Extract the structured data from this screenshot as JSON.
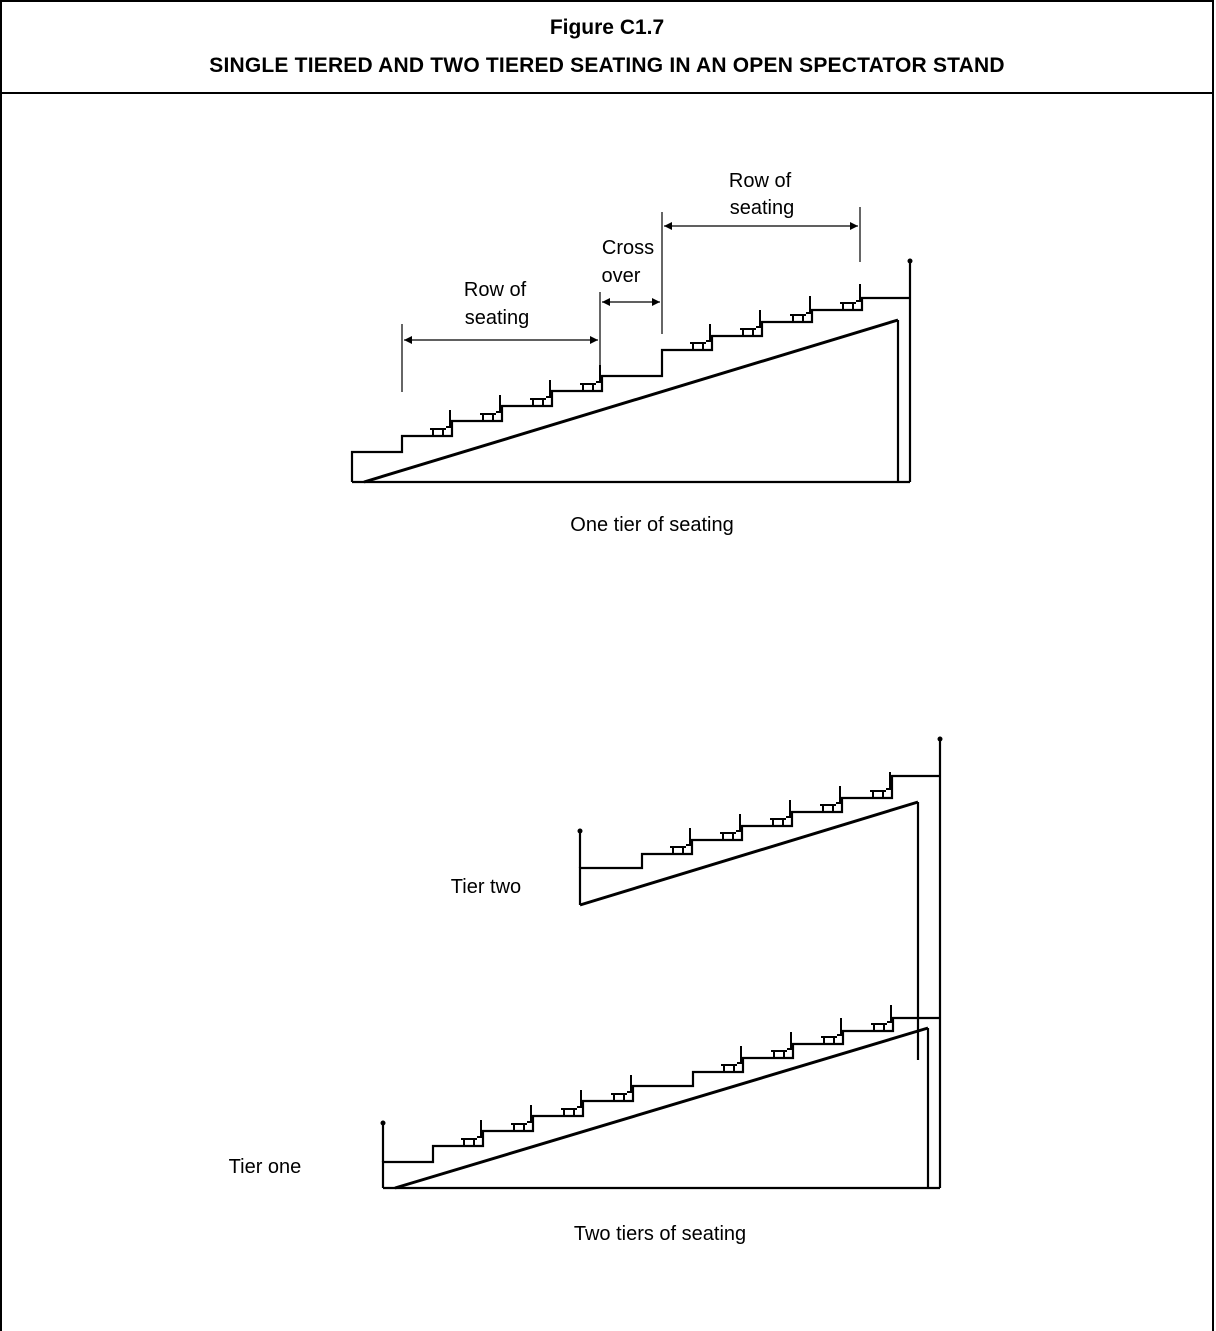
{
  "figure": {
    "number": "Figure C1.7",
    "title": "SINGLE TIERED AND TWO TIERED SEATING IN AN OPEN SPECTATOR STAND"
  },
  "single_tier": {
    "row_of_seating_left": [
      "Row of",
      "seating"
    ],
    "cross_over": [
      "Cross",
      "over"
    ],
    "row_of_seating_right": [
      "Row of",
      "seating"
    ],
    "caption": "One tier of seating"
  },
  "two_tier": {
    "tier_two_label": "Tier two",
    "tier_one_label": "Tier one",
    "caption": "Two tiers of seating"
  }
}
